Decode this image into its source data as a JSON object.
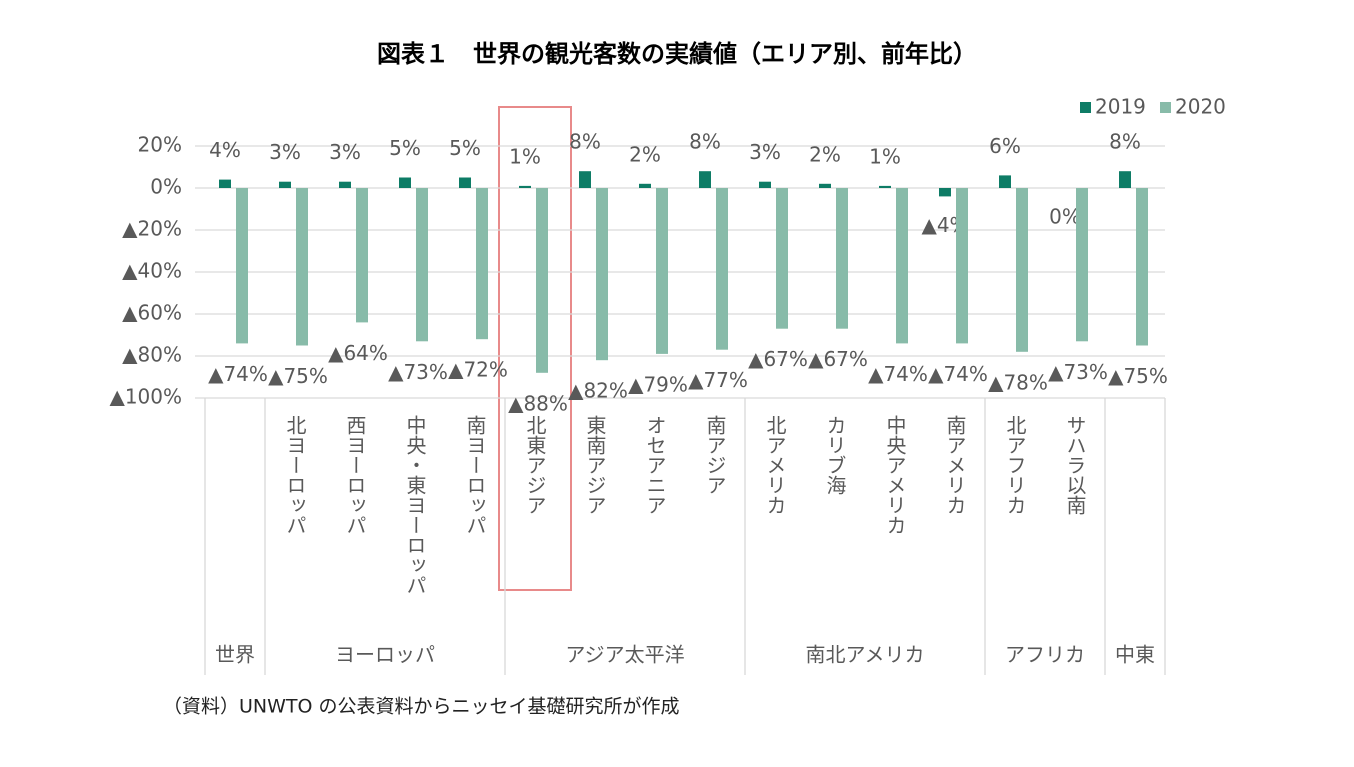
{
  "chart_data": {
    "type": "bar",
    "title": "図表１　世界の観光客数の実績値（エリア別、前年比）",
    "source": "（資料）UNWTO の公表資料からニッセイ基礎研究所が作成",
    "categories": [
      null,
      "北ヨーロッパ",
      "西ヨーロッパ",
      "中央・東ヨーロッパ",
      "南ヨーロッパ",
      "北東アジア",
      "東南アジア",
      "オセアニア",
      "南アジア",
      "北アメリカ",
      "カリブ海",
      "中央アメリカ",
      "南アメリカ",
      "北アフリカ",
      "サハラ以南",
      null
    ],
    "groups": [
      {
        "label": "世界",
        "size": 1
      },
      {
        "label": "ヨーロッパ",
        "size": 4
      },
      {
        "label": "アジア太平洋",
        "size": 4
      },
      {
        "label": "南北アメリカ",
        "size": 4
      },
      {
        "label": "アフリカ",
        "size": 2
      },
      {
        "label": "中東",
        "size": 1
      }
    ],
    "series": [
      {
        "name": "2019",
        "color": "#0e7c66",
        "values": [
          4,
          3,
          3,
          5,
          5,
          1,
          8,
          2,
          8,
          3,
          2,
          1,
          -4,
          6,
          0,
          8
        ],
        "value_labels": [
          "4%",
          "3%",
          "3%",
          "5%",
          "5%",
          "1%",
          "8%",
          "2%",
          "8%",
          "3%",
          "2%",
          "1%",
          "▲4%",
          "6%",
          "0%",
          "8%"
        ]
      },
      {
        "name": "2020",
        "color": "#88bba9",
        "values": [
          -74,
          -75,
          -64,
          -73,
          -72,
          -88,
          -82,
          -79,
          -77,
          -67,
          -67,
          -74,
          -74,
          -78,
          -73,
          -75
        ],
        "value_labels": [
          "▲74%",
          "▲75%",
          "▲64%",
          "▲73%",
          "▲72%",
          "▲88%",
          "▲82%",
          "▲79%",
          "▲77%",
          "▲67%",
          "▲67%",
          "▲74%",
          "▲74%",
          "▲78%",
          "▲73%",
          "▲75%"
        ]
      }
    ],
    "ylim": [
      -100,
      20
    ],
    "yticks": [
      {
        "value": 20,
        "label": "20%"
      },
      {
        "value": 0,
        "label": "0%"
      },
      {
        "value": -20,
        "label": "▲20%"
      },
      {
        "value": -40,
        "label": "▲40%"
      },
      {
        "value": -60,
        "label": "▲60%"
      },
      {
        "value": -80,
        "label": "▲80%"
      },
      {
        "value": -100,
        "label": "▲100%"
      }
    ],
    "grid": true,
    "legend": "top-right"
  }
}
